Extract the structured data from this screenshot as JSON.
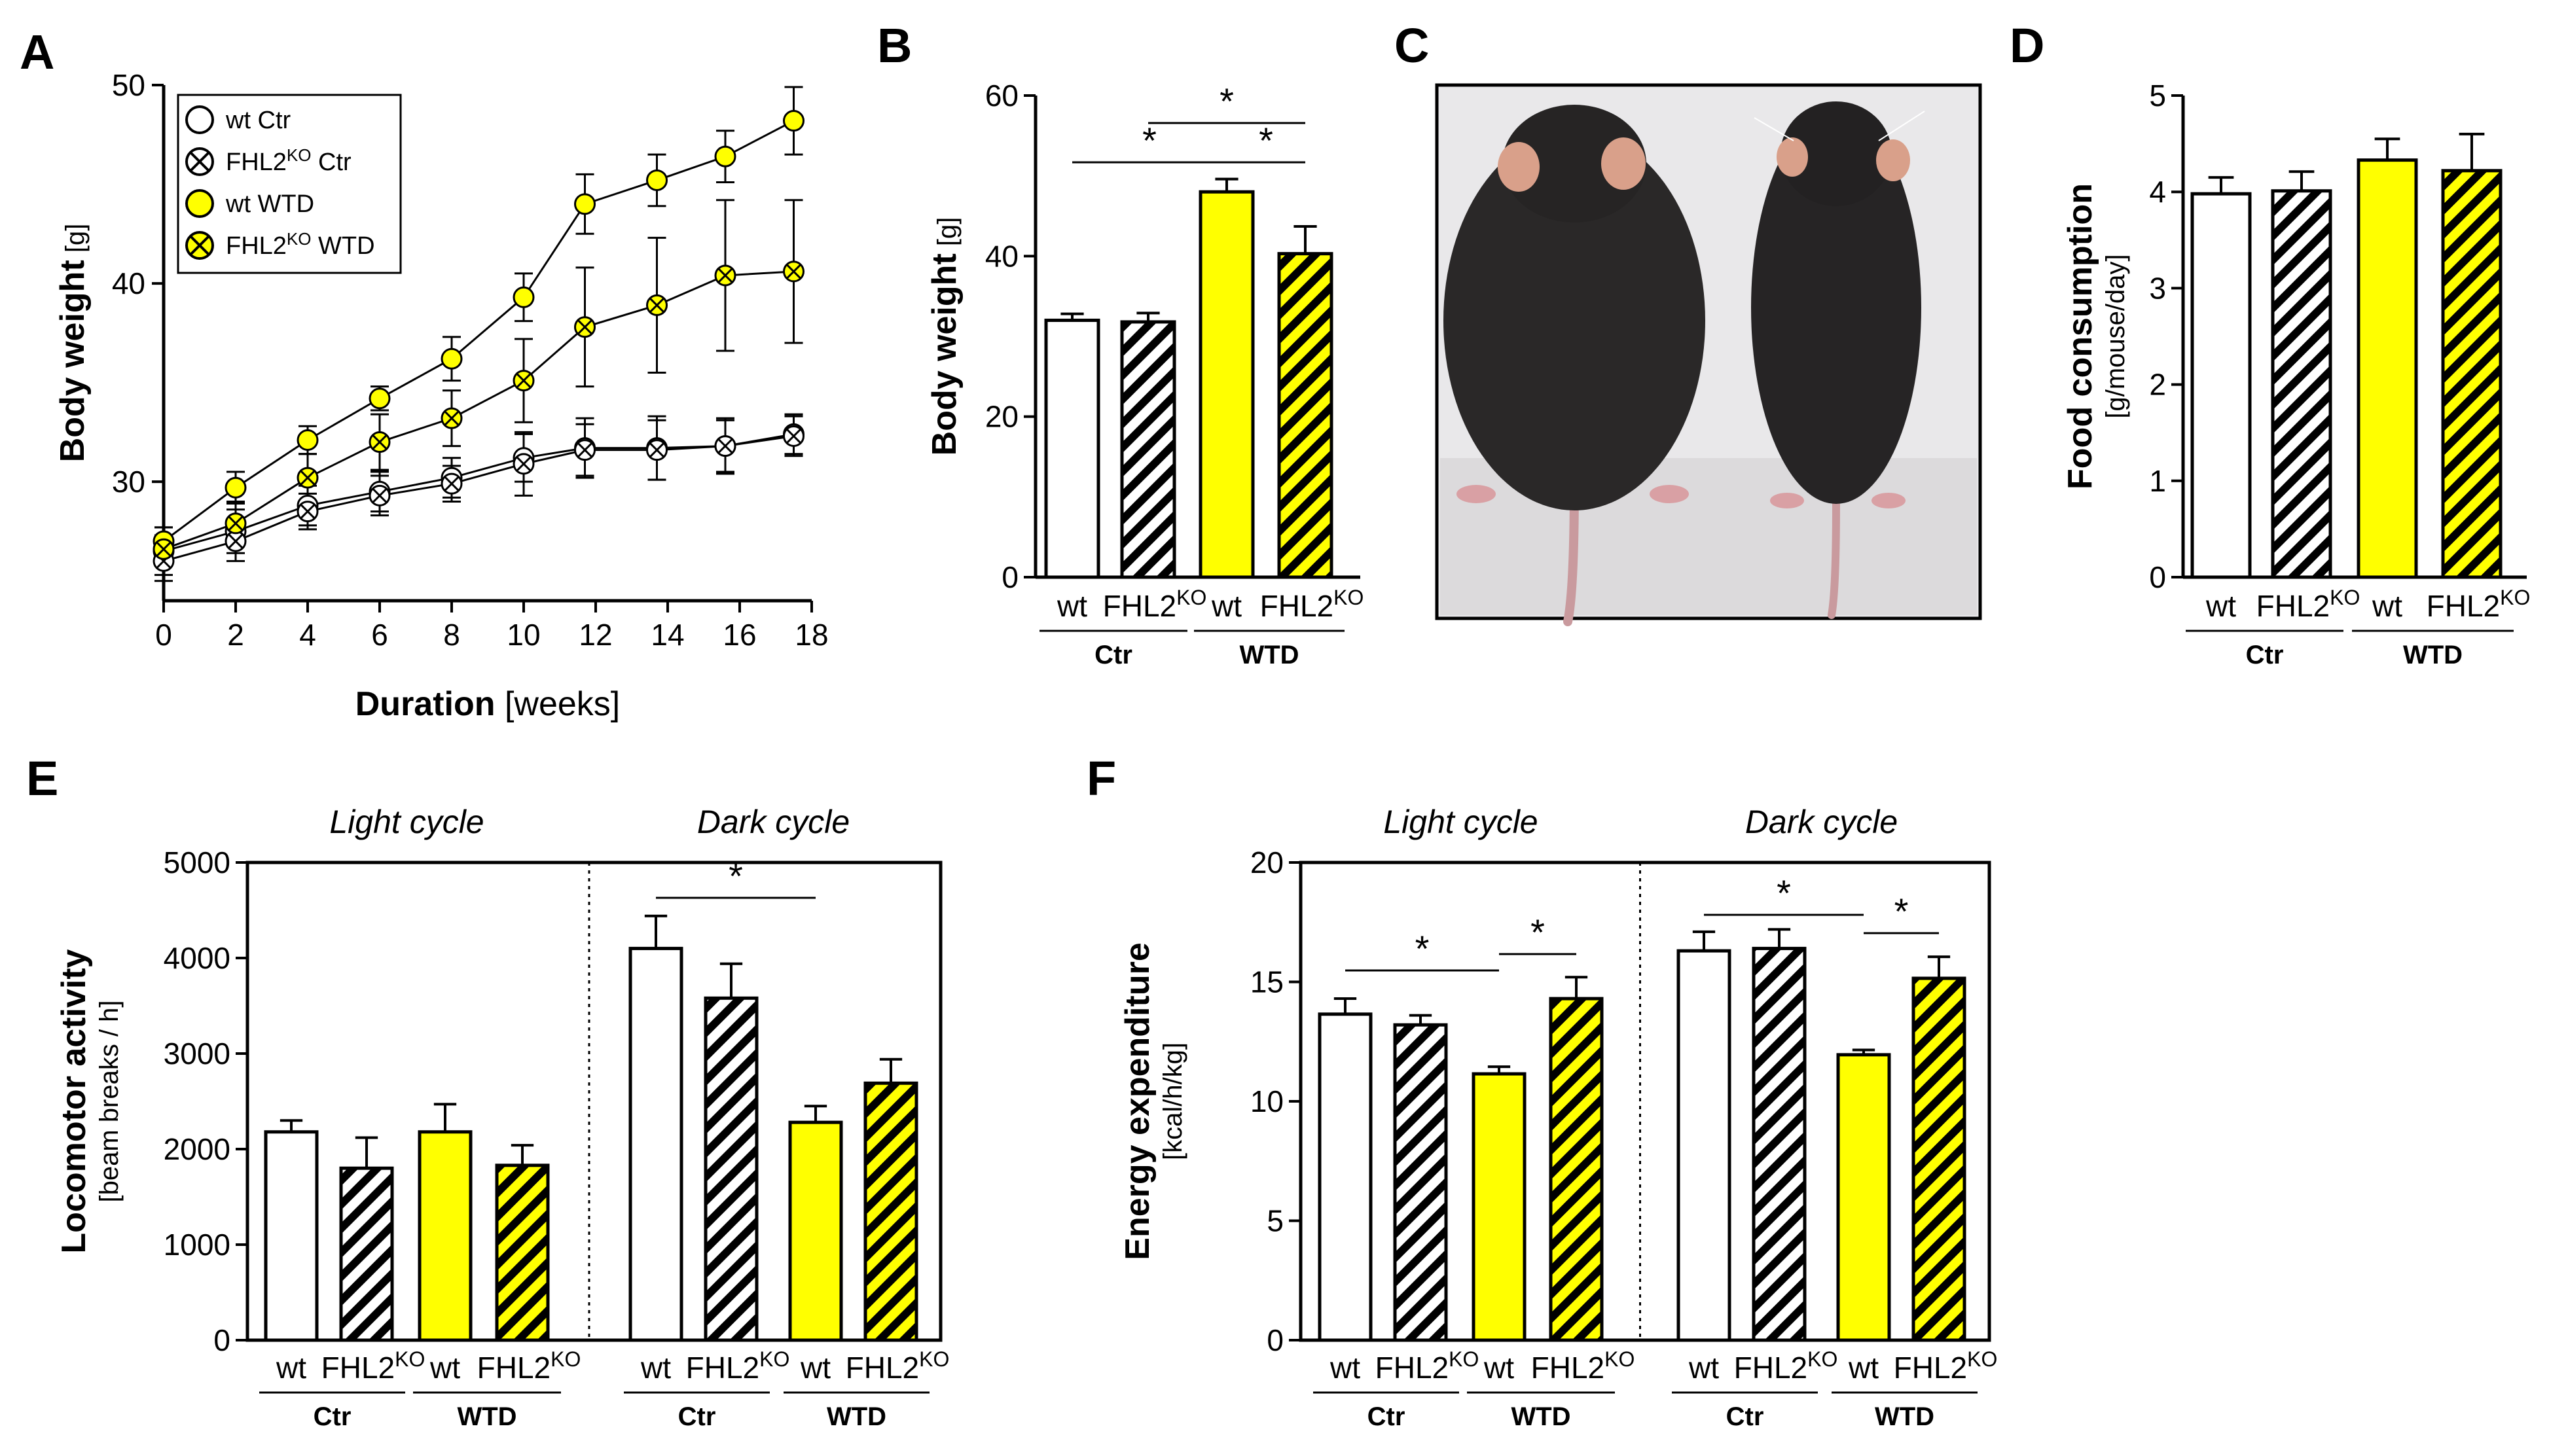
{
  "colors": {
    "wt": "#ffffff",
    "ko": "#ffffff",
    "wtd": "#ffff00",
    "koWtd": "#ffff00",
    "stroke": "#000000",
    "hatch_black": "#000000"
  },
  "chart_data": [
    {
      "id": "A",
      "panel": "A",
      "type": "line",
      "xlabel_bold": "Duration",
      "xlabel_unit": "[weeks]",
      "ylabel_bold": "Body weight",
      "ylabel_unit": "[g]",
      "xlim": [
        0,
        18
      ],
      "ylim": [
        24,
        50
      ],
      "xticks": [
        0,
        2,
        4,
        6,
        8,
        10,
        12,
        14,
        16,
        18
      ],
      "yticks": [
        30,
        40,
        50
      ],
      "series": [
        {
          "name": "wt Ctr",
          "legend": "wt Ctr",
          "legend_main": "wt Ctr",
          "legend_sup": "",
          "legend_tail": "",
          "marker": "open",
          "fill": "#ffffff",
          "x": [
            0,
            2,
            4,
            6,
            8,
            10,
            11.7,
            13.7,
            15.6,
            17.5
          ],
          "y": [
            26.5,
            27.5,
            28.8,
            29.5,
            30.2,
            31.2,
            31.7,
            31.7,
            31.8,
            32.4
          ],
          "err": [
            1.2,
            1.1,
            1.0,
            1.0,
            1.0,
            1.2,
            1.5,
            1.6,
            1.4,
            1.0
          ]
        },
        {
          "name": "FHL2KO Ctr",
          "legend": "FHL2KO Ctr",
          "legend_main": "FHL2",
          "legend_sup": "KO",
          "legend_tail": " Ctr",
          "marker": "cross",
          "fill": "#ffffff",
          "x": [
            0,
            2,
            4,
            6,
            8,
            10,
            11.7,
            13.7,
            15.6,
            17.5
          ],
          "y": [
            26.0,
            27.0,
            28.5,
            29.3,
            29.9,
            30.9,
            31.6,
            31.6,
            31.8,
            32.3
          ],
          "err": [
            1.0,
            1.0,
            0.9,
            1.0,
            0.9,
            1.6,
            1.3,
            1.5,
            1.3,
            1.0
          ]
        },
        {
          "name": "wt WTD",
          "legend": "wt WTD",
          "legend_main": "wt WTD",
          "legend_sup": "",
          "legend_tail": "",
          "marker": "open",
          "fill": "#ffff00",
          "x": [
            0,
            2,
            4,
            6,
            8,
            10,
            11.7,
            13.7,
            15.6,
            17.5
          ],
          "y": [
            27.0,
            29.7,
            32.1,
            34.2,
            36.2,
            39.3,
            44.0,
            45.2,
            46.4,
            48.2
          ],
          "err": [
            0.7,
            0.8,
            0.7,
            0.6,
            1.1,
            1.2,
            1.5,
            1.3,
            1.3,
            1.7
          ]
        },
        {
          "name": "FHL2KO WTD",
          "legend": "FHL2KO WTD",
          "legend_main": "FHL2",
          "legend_sup": "KO",
          "legend_tail": " WTD",
          "marker": "cross",
          "fill": "#ffff00",
          "x": [
            0,
            2,
            4,
            6,
            8,
            10,
            11.7,
            13.7,
            15.6,
            17.5
          ],
          "y": [
            26.6,
            27.9,
            30.2,
            32.0,
            33.2,
            35.1,
            37.8,
            38.9,
            40.4,
            40.6
          ],
          "err": [
            0.7,
            1.1,
            1.2,
            1.4,
            1.4,
            2.1,
            3.0,
            3.4,
            3.8,
            3.6
          ]
        }
      ]
    },
    {
      "id": "B",
      "panel": "B",
      "type": "bar",
      "ylabel_bold": "Body weight",
      "ylabel_unit": "[g]",
      "ylim": [
        0,
        60
      ],
      "yticks": [
        0,
        20,
        40,
        60
      ],
      "categories": [
        "wt",
        "FHL2KO",
        "wt",
        "FHL2KO"
      ],
      "cat_labels": [
        {
          "main": "wt",
          "sup": ""
        },
        {
          "main": "FHL2",
          "sup": "KO"
        },
        {
          "main": "wt",
          "sup": ""
        },
        {
          "main": "FHL2",
          "sup": "KO"
        }
      ],
      "groups": [
        "Ctr",
        "WTD"
      ],
      "values": [
        32.0,
        31.8,
        48.0,
        40.3
      ],
      "errors": [
        0.8,
        1.1,
        1.6,
        3.4
      ],
      "styles": [
        "wt",
        "ko",
        "wtd",
        "koWtd"
      ],
      "significance": [
        {
          "from": 0,
          "to": 2,
          "label": "*"
        },
        {
          "from": 1,
          "to": 3,
          "label": "*"
        },
        {
          "from": 2,
          "to": 3,
          "label": "*"
        }
      ]
    },
    {
      "id": "D",
      "panel": "D",
      "type": "bar",
      "ylabel_bold": "Food consumption",
      "ylabel_unit": "[g/mouse/day]",
      "ylim": [
        0,
        5
      ],
      "yticks": [
        0,
        1,
        2,
        3,
        4,
        5
      ],
      "categories": [
        "wt",
        "FHL2KO",
        "wt",
        "FHL2KO"
      ],
      "cat_labels": [
        {
          "main": "wt",
          "sup": ""
        },
        {
          "main": "FHL2",
          "sup": "KO"
        },
        {
          "main": "wt",
          "sup": ""
        },
        {
          "main": "FHL2",
          "sup": "KO"
        }
      ],
      "groups": [
        "Ctr",
        "WTD"
      ],
      "values": [
        3.98,
        4.01,
        4.33,
        4.22
      ],
      "errors": [
        0.17,
        0.2,
        0.22,
        0.38
      ],
      "styles": [
        "wt",
        "ko",
        "wtd",
        "koWtd"
      ],
      "significance": []
    },
    {
      "id": "E",
      "panel": "E",
      "type": "bar",
      "ylabel_bold": "Locomotor activity",
      "ylabel_unit": "[beam breaks / h]",
      "ylim": [
        0,
        5000
      ],
      "yticks": [
        0,
        1000,
        2000,
        3000,
        4000,
        5000
      ],
      "cycles": [
        "Light cycle",
        "Dark cycle"
      ],
      "categories": [
        "wt",
        "FHL2KO",
        "wt",
        "FHL2KO",
        "wt",
        "FHL2KO",
        "wt",
        "FHL2KO"
      ],
      "cat_labels": [
        {
          "main": "wt",
          "sup": ""
        },
        {
          "main": "FHL2",
          "sup": "KO"
        },
        {
          "main": "wt",
          "sup": ""
        },
        {
          "main": "FHL2",
          "sup": "KO"
        },
        {
          "main": "wt",
          "sup": ""
        },
        {
          "main": "FHL2",
          "sup": "KO"
        },
        {
          "main": "wt",
          "sup": ""
        },
        {
          "main": "FHL2",
          "sup": "KO"
        }
      ],
      "groups": [
        "Ctr",
        "WTD",
        "Ctr",
        "WTD"
      ],
      "values": [
        2180,
        1800,
        2180,
        1830,
        4100,
        3580,
        2280,
        2690
      ],
      "errors": [
        120,
        320,
        290,
        210,
        340,
        360,
        170,
        250
      ],
      "styles": [
        "wt",
        "ko",
        "wtd",
        "koWtd",
        "wt",
        "ko",
        "wtd",
        "koWtd"
      ],
      "significance": [
        {
          "from": 4,
          "to": 6,
          "label": "*"
        }
      ]
    },
    {
      "id": "F",
      "panel": "F",
      "type": "bar",
      "ylabel_bold": "Energy expenditure",
      "ylabel_unit": "[kcal/h/kg]",
      "ylim": [
        0,
        20
      ],
      "yticks": [
        0,
        5,
        10,
        15,
        20
      ],
      "cycles": [
        "Light cycle",
        "Dark cycle"
      ],
      "categories": [
        "wt",
        "FHL2KO",
        "wt",
        "FHL2KO",
        "wt",
        "FHL2KO",
        "wt",
        "FHL2KO"
      ],
      "cat_labels": [
        {
          "main": "wt",
          "sup": ""
        },
        {
          "main": "FHL2",
          "sup": "KO"
        },
        {
          "main": "wt",
          "sup": ""
        },
        {
          "main": "FHL2",
          "sup": "KO"
        },
        {
          "main": "wt",
          "sup": ""
        },
        {
          "main": "FHL2",
          "sup": "KO"
        },
        {
          "main": "wt",
          "sup": ""
        },
        {
          "main": "FHL2",
          "sup": "KO"
        }
      ],
      "groups": [
        "Ctr",
        "WTD",
        "Ctr",
        "WTD"
      ],
      "values": [
        13.65,
        13.2,
        11.15,
        14.3,
        16.3,
        16.4,
        11.95,
        15.15
      ],
      "errors": [
        0.65,
        0.4,
        0.3,
        0.9,
        0.8,
        0.8,
        0.2,
        0.9
      ],
      "styles": [
        "wt",
        "ko",
        "wtd",
        "koWtd",
        "wt",
        "ko",
        "wtd",
        "koWtd"
      ],
      "significance": [
        {
          "from": 0,
          "to": 2,
          "label": "*"
        },
        {
          "from": 2,
          "to": 3,
          "label": "*"
        },
        {
          "from": 4,
          "to": 6,
          "label": "*"
        },
        {
          "from": 6,
          "to": 7,
          "label": "*"
        }
      ]
    }
  ],
  "photo": {
    "panel": "C",
    "icon": "mouse-photo"
  }
}
